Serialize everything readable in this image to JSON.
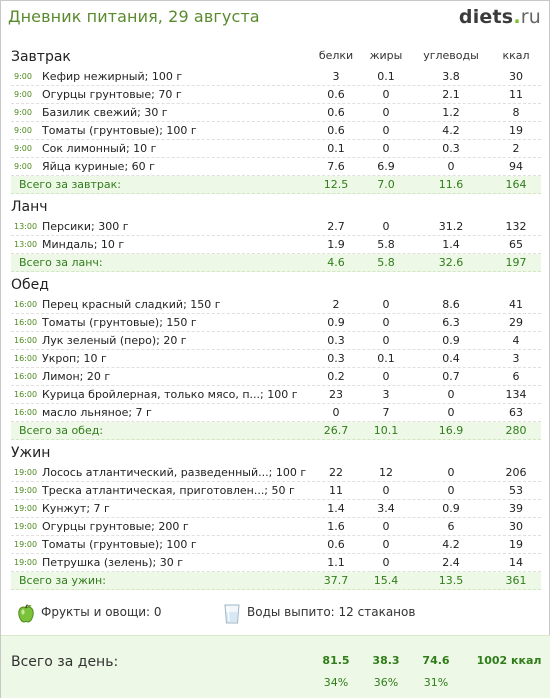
{
  "header": {
    "title": "Дневник питания, 29 августа",
    "logo_main": "diets",
    "logo_dot": ".",
    "logo_tld": "ru"
  },
  "columns": {
    "protein": "белки",
    "fat": "жиры",
    "carbs": "углеводы",
    "kcal": "ккал"
  },
  "meals": [
    {
      "title": "Завтрак",
      "items": [
        {
          "time": "9:00",
          "name": "Кефир нежирный; 100 г",
          "protein": "3",
          "fat": "0.1",
          "carbs": "3.8",
          "kcal": "30"
        },
        {
          "time": "9:00",
          "name": "Огурцы грунтовые; 70 г",
          "protein": "0.6",
          "fat": "0",
          "carbs": "2.1",
          "kcal": "11"
        },
        {
          "time": "9:00",
          "name": "Базилик свежий; 30 г",
          "protein": "0.6",
          "fat": "0",
          "carbs": "1.2",
          "kcal": "8"
        },
        {
          "time": "9:00",
          "name": "Томаты (грунтовые); 100 г",
          "protein": "0.6",
          "fat": "0",
          "carbs": "4.2",
          "kcal": "19"
        },
        {
          "time": "9:00",
          "name": "Сок лимонный; 10 г",
          "protein": "0.1",
          "fat": "0",
          "carbs": "0.3",
          "kcal": "2"
        },
        {
          "time": "9:00",
          "name": "Яйца куриные; 60 г",
          "protein": "7.6",
          "fat": "6.9",
          "carbs": "0",
          "kcal": "94"
        }
      ],
      "total": {
        "label": "Всего за завтрак:",
        "protein": "12.5",
        "fat": "7.0",
        "carbs": "11.6",
        "kcal": "164"
      }
    },
    {
      "title": "Ланч",
      "items": [
        {
          "time": "13:00",
          "name": "Персики; 300 г",
          "protein": "2.7",
          "fat": "0",
          "carbs": "31.2",
          "kcal": "132"
        },
        {
          "time": "13:00",
          "name": "Миндаль; 10 г",
          "protein": "1.9",
          "fat": "5.8",
          "carbs": "1.4",
          "kcal": "65"
        }
      ],
      "total": {
        "label": "Всего за ланч:",
        "protein": "4.6",
        "fat": "5.8",
        "carbs": "32.6",
        "kcal": "197"
      }
    },
    {
      "title": "Обед",
      "items": [
        {
          "time": "16:00",
          "name": "Перец красный сладкий; 150 г",
          "protein": "2",
          "fat": "0",
          "carbs": "8.6",
          "kcal": "41"
        },
        {
          "time": "16:00",
          "name": "Томаты (грунтовые); 150 г",
          "protein": "0.9",
          "fat": "0",
          "carbs": "6.3",
          "kcal": "29"
        },
        {
          "time": "16:00",
          "name": "Лук зеленый (перо); 20 г",
          "protein": "0.3",
          "fat": "0",
          "carbs": "0.9",
          "kcal": "4"
        },
        {
          "time": "16:00",
          "name": "Укроп; 10 г",
          "protein": "0.3",
          "fat": "0.1",
          "carbs": "0.4",
          "kcal": "3"
        },
        {
          "time": "16:00",
          "name": "Лимон; 20 г",
          "protein": "0.2",
          "fat": "0",
          "carbs": "0.7",
          "kcal": "6"
        },
        {
          "time": "16:00",
          "name": "Курица бройлерная, только мясо, п...; 100 г",
          "protein": "23",
          "fat": "3",
          "carbs": "0",
          "kcal": "134"
        },
        {
          "time": "16:00",
          "name": "масло льняное; 7 г",
          "protein": "0",
          "fat": "7",
          "carbs": "0",
          "kcal": "63"
        }
      ],
      "total": {
        "label": "Всего за обед:",
        "protein": "26.7",
        "fat": "10.1",
        "carbs": "16.9",
        "kcal": "280"
      }
    },
    {
      "title": "Ужин",
      "items": [
        {
          "time": "19:00",
          "name": "Лосось атлантический, разведенный...; 100 г",
          "protein": "22",
          "fat": "12",
          "carbs": "0",
          "kcal": "206"
        },
        {
          "time": "19:00",
          "name": "Треска атлантическая, приготовлен...; 50 г",
          "protein": "11",
          "fat": "0",
          "carbs": "0",
          "kcal": "53"
        },
        {
          "time": "19:00",
          "name": "Кунжут; 7 г",
          "protein": "1.4",
          "fat": "3.4",
          "carbs": "0.9",
          "kcal": "39"
        },
        {
          "time": "19:00",
          "name": "Огурцы грунтовые; 200 г",
          "protein": "1.6",
          "fat": "0",
          "carbs": "6",
          "kcal": "30"
        },
        {
          "time": "19:00",
          "name": "Томаты (грунтовые); 100 г",
          "protein": "0.6",
          "fat": "0",
          "carbs": "4.2",
          "kcal": "19"
        },
        {
          "time": "19:00",
          "name": "Петрушка (зелень); 30 г",
          "protein": "1.1",
          "fat": "0",
          "carbs": "2.4",
          "kcal": "14"
        }
      ],
      "total": {
        "label": "Всего за ужин:",
        "protein": "37.7",
        "fat": "15.4",
        "carbs": "13.5",
        "kcal": "361"
      }
    }
  ],
  "extras": {
    "fruits_label": "Фрукты и овощи: 0",
    "fruits_icon": "apple-icon",
    "water_label": "Воды выпито: 12 стаканов",
    "water_icon": "water-glass-icon"
  },
  "day_total": {
    "label": "Всего за день:",
    "protein": "81.5",
    "fat": "38.3",
    "carbs": "74.6",
    "kcal": "1002 ккал",
    "protein_pct": "34%",
    "fat_pct": "36%",
    "carbs_pct": "31%"
  },
  "colors": {
    "accent": "#5a8a2e",
    "total_bg": "#eef8e6",
    "total_text": "#2f7d1a"
  }
}
